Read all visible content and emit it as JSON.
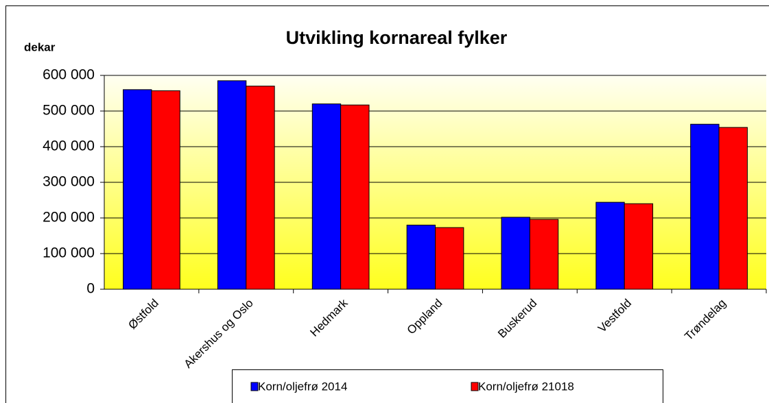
{
  "chart_data": {
    "type": "bar",
    "title": "Utvikling kornareal fylker",
    "y_label": "dekar",
    "categories": [
      "Østfold",
      "Akershus og Oslo",
      "Hedmark",
      "Oppland",
      "Buskerud",
      "Vestfold",
      "Trøndelag"
    ],
    "series": [
      {
        "name": "Korn/oljefrø 2014",
        "color": "#0000ff",
        "values": [
          560000,
          585000,
          520000,
          180000,
          202000,
          244000,
          463000
        ]
      },
      {
        "name": "Korn/oljefrø 21018",
        "color": "#ff0000",
        "values": [
          557000,
          570000,
          517000,
          173000,
          196000,
          240000,
          454000
        ]
      }
    ],
    "ylim": [
      0,
      600000
    ],
    "yticks": [
      0,
      {
        "value": 100000,
        "label": "100 000"
      },
      {
        "value": 200000,
        "label": "200 000"
      },
      {
        "value": 300000,
        "label": "300 000"
      },
      {
        "value": 400000,
        "label": "400 000"
      },
      {
        "value": 500000,
        "label": "500 000"
      },
      {
        "value": 600000,
        "label": "600 000"
      }
    ],
    "grid": true,
    "legend": "bottom"
  }
}
